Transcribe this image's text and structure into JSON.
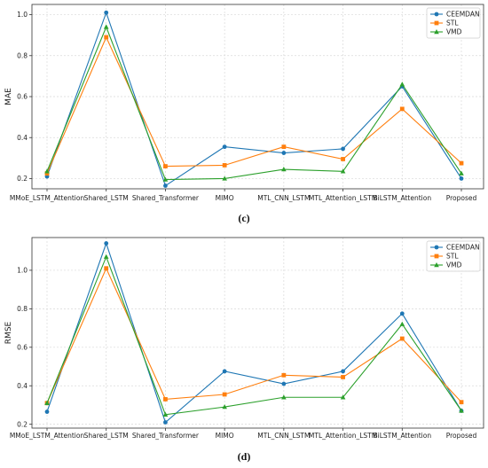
{
  "chart_data": [
    {
      "type": "line",
      "panel_label": "(c)",
      "ylabel": "MAE",
      "xlabel": "",
      "categories": [
        "MMoE_LSTM_Attention",
        "Shared_LSTM",
        "Shared_Transformer",
        "MIMO",
        "MTL_CNN_LSTM",
        "MTL_Attention_LSTM",
        "BiLSTM_Attention",
        "Proposed"
      ],
      "yticks": [
        0.2,
        0.4,
        0.6,
        0.8,
        1.0
      ],
      "ylim": [
        0.15,
        1.05
      ],
      "grid": true,
      "legend_position": "top-right",
      "series": [
        {
          "name": "CEEMDAN",
          "color": "#1f77b4",
          "marker": "circle",
          "values": [
            0.21,
            1.01,
            0.165,
            0.355,
            0.325,
            0.345,
            0.65,
            0.2
          ]
        },
        {
          "name": "STL",
          "color": "#ff7f0e",
          "marker": "square",
          "values": [
            0.225,
            0.89,
            0.26,
            0.265,
            0.355,
            0.295,
            0.54,
            0.275
          ]
        },
        {
          "name": "VMD",
          "color": "#2ca02c",
          "marker": "triangle",
          "values": [
            0.235,
            0.94,
            0.195,
            0.2,
            0.245,
            0.235,
            0.66,
            0.225
          ]
        }
      ]
    },
    {
      "type": "line",
      "panel_label": "(d)",
      "ylabel": "RMSE",
      "xlabel": "",
      "categories": [
        "MMoE_LSTM_Attention",
        "Shared_LSTM",
        "Shared_Transformer",
        "MIMO",
        "MTL_CNN_LSTM",
        "MTL_Attention_LSTM",
        "BiLSTM_Attention",
        "Proposed"
      ],
      "yticks": [
        0.2,
        0.4,
        0.6,
        0.8,
        1.0
      ],
      "ylim": [
        0.18,
        1.17
      ],
      "grid": true,
      "legend_position": "top-right",
      "series": [
        {
          "name": "CEEMDAN",
          "color": "#1f77b4",
          "marker": "circle",
          "values": [
            0.265,
            1.14,
            0.21,
            0.475,
            0.41,
            0.475,
            0.775,
            0.27
          ]
        },
        {
          "name": "STL",
          "color": "#ff7f0e",
          "marker": "square",
          "values": [
            0.31,
            1.01,
            0.33,
            0.355,
            0.455,
            0.445,
            0.645,
            0.315
          ]
        },
        {
          "name": "VMD",
          "color": "#2ca02c",
          "marker": "triangle",
          "values": [
            0.31,
            1.07,
            0.25,
            0.29,
            0.34,
            0.34,
            0.72,
            0.27
          ]
        }
      ]
    }
  ]
}
